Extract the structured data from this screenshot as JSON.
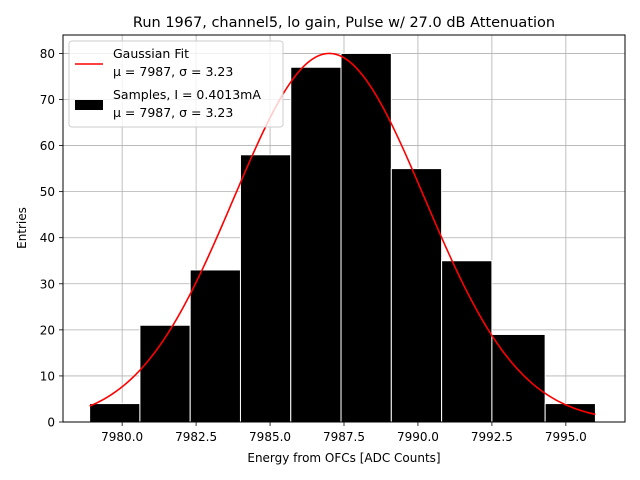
{
  "chart_data": {
    "type": "bar",
    "title": "Run 1967, channel5, lo gain, Pulse w/ 27.0 dB Attenuation",
    "xlabel": "Energy from OFCs [ADC Counts]",
    "ylabel": "Entries",
    "xlim": [
      7978.0,
      7997.0
    ],
    "ylim": [
      0,
      84
    ],
    "grid": true,
    "legend_position": "top-left",
    "xticks": [
      7980.0,
      7982.5,
      7985.0,
      7987.5,
      7990.0,
      7992.5,
      7995.0
    ],
    "xtick_labels": [
      "7980.0",
      "7982.5",
      "7985.0",
      "7987.5",
      "7990.0",
      "7992.5",
      "7995.0"
    ],
    "yticks": [
      0,
      10,
      20,
      30,
      40,
      50,
      60,
      70,
      80
    ],
    "ytick_labels": [
      "0",
      "10",
      "20",
      "30",
      "40",
      "50",
      "60",
      "70",
      "80"
    ],
    "histogram": {
      "name": "Samples, I = 0.4013mA",
      "stats": "μ = 7987, σ = 3.23",
      "color": "#000000",
      "edge_color": "#ffffff",
      "bin_edges": [
        7978.9,
        7980.6,
        7982.3,
        7984.0,
        7985.7,
        7987.4,
        7989.1,
        7990.8,
        7992.5,
        7994.3,
        7996.0
      ],
      "counts": [
        4,
        21,
        33,
        58,
        77,
        80,
        55,
        35,
        19,
        4
      ]
    },
    "fit": {
      "name": "Gaussian Fit",
      "stats": "μ = 7987, σ = 3.23",
      "color": "#ff0000",
      "mu": 7987.0,
      "sigma": 3.23,
      "amplitude": 80,
      "x_range": [
        7978.9,
        7996.0
      ]
    }
  }
}
